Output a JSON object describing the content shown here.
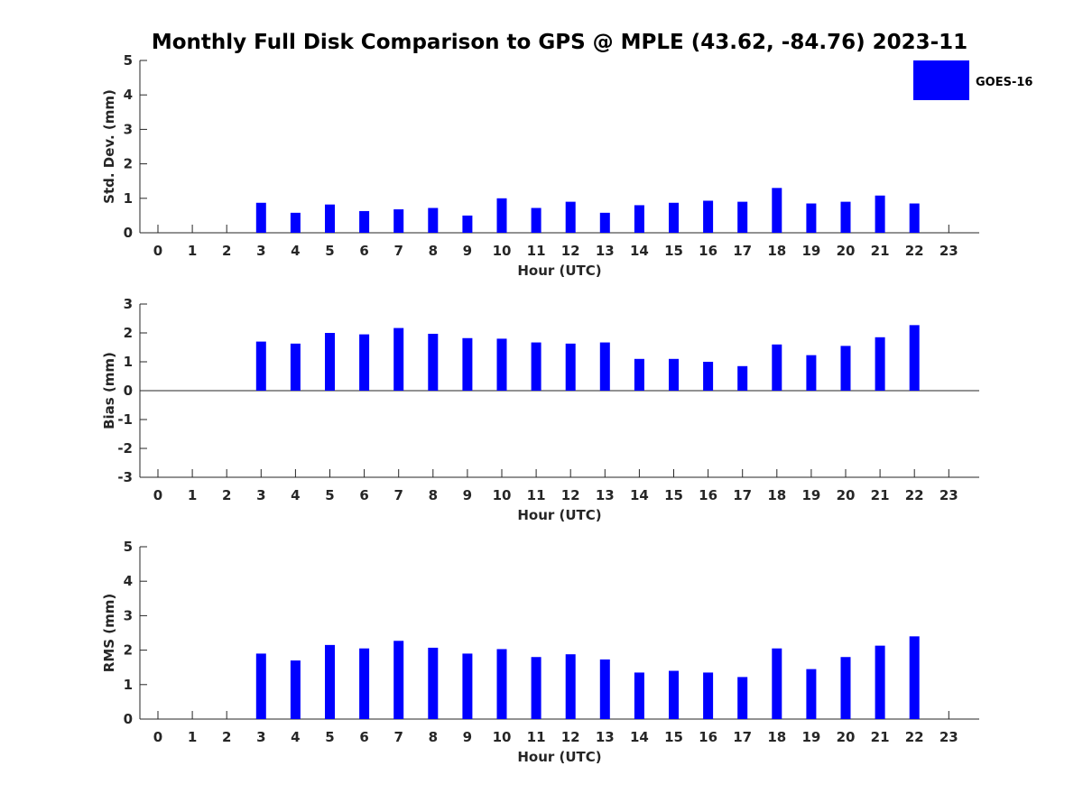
{
  "title": "Monthly Full Disk Comparison to GPS @ MPLE (43.62, -84.76) 2023-11",
  "legend": {
    "label": "GOES-16",
    "color": "#0000ff"
  },
  "chart_data": [
    {
      "type": "bar",
      "ylabel": "Std. Dev. (mm)",
      "xlabel": "Hour (UTC)",
      "ylim": [
        0,
        5
      ],
      "yticks": [
        "0",
        "1",
        "2",
        "3",
        "4",
        "5"
      ],
      "categories": [
        "0",
        "1",
        "2",
        "3",
        "4",
        "5",
        "6",
        "7",
        "8",
        "9",
        "10",
        "11",
        "12",
        "13",
        "14",
        "15",
        "16",
        "17",
        "18",
        "19",
        "20",
        "21",
        "22",
        "23"
      ],
      "series": [
        {
          "name": "GOES-16",
          "color": "#0000ff",
          "values": [
            null,
            null,
            null,
            0.87,
            0.58,
            0.82,
            0.63,
            0.68,
            0.72,
            0.5,
            1.0,
            0.72,
            0.9,
            0.58,
            0.8,
            0.87,
            0.93,
            0.9,
            1.3,
            0.85,
            0.9,
            1.08,
            0.85,
            null
          ]
        }
      ]
    },
    {
      "type": "bar",
      "ylabel": "Bias (mm)",
      "xlabel": "Hour (UTC)",
      "ylim": [
        -3,
        3
      ],
      "yticks": [
        "-3",
        "-2",
        "-1",
        "0",
        "1",
        "2",
        "3"
      ],
      "categories": [
        "0",
        "1",
        "2",
        "3",
        "4",
        "5",
        "6",
        "7",
        "8",
        "9",
        "10",
        "11",
        "12",
        "13",
        "14",
        "15",
        "16",
        "17",
        "18",
        "19",
        "20",
        "21",
        "22",
        "23"
      ],
      "series": [
        {
          "name": "GOES-16",
          "color": "#0000ff",
          "values": [
            null,
            null,
            null,
            1.7,
            1.63,
            2.0,
            1.95,
            2.17,
            1.97,
            1.82,
            1.8,
            1.67,
            1.63,
            1.67,
            1.1,
            1.1,
            1.0,
            0.85,
            1.6,
            1.23,
            1.55,
            1.85,
            2.27,
            null
          ]
        }
      ]
    },
    {
      "type": "bar",
      "ylabel": "RMS (mm)",
      "xlabel": "Hour (UTC)",
      "ylim": [
        0,
        5
      ],
      "yticks": [
        "0",
        "1",
        "2",
        "3",
        "4",
        "5"
      ],
      "categories": [
        "0",
        "1",
        "2",
        "3",
        "4",
        "5",
        "6",
        "7",
        "8",
        "9",
        "10",
        "11",
        "12",
        "13",
        "14",
        "15",
        "16",
        "17",
        "18",
        "19",
        "20",
        "21",
        "22",
        "23"
      ],
      "series": [
        {
          "name": "GOES-16",
          "color": "#0000ff",
          "values": [
            null,
            null,
            null,
            1.9,
            1.7,
            2.15,
            2.05,
            2.27,
            2.07,
            1.9,
            2.03,
            1.8,
            1.88,
            1.73,
            1.35,
            1.4,
            1.35,
            1.22,
            2.05,
            1.45,
            1.8,
            2.13,
            2.4,
            null
          ]
        }
      ]
    }
  ]
}
